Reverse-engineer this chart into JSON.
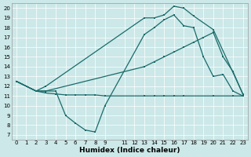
{
  "xlabel": "Humidex (Indice chaleur)",
  "xlim": [
    -0.5,
    23.5
  ],
  "ylim": [
    6.5,
    20.5
  ],
  "yticks": [
    7,
    8,
    9,
    10,
    11,
    12,
    13,
    14,
    15,
    16,
    17,
    18,
    19,
    20
  ],
  "bg_color": "#cce8e8",
  "line_color": "#1a6b6b",
  "line1_x": [
    0,
    2,
    3,
    4,
    5,
    6,
    7,
    8,
    9,
    13,
    14,
    15,
    16,
    17,
    20,
    22,
    23
  ],
  "line1_y": [
    12.5,
    11.5,
    11.3,
    11.2,
    11.1,
    11.1,
    11.1,
    11.1,
    11.0,
    11.0,
    11.0,
    11.0,
    11.0,
    11.0,
    11.0,
    11.0,
    11.0
  ],
  "line2_x": [
    0,
    2,
    3,
    4,
    5,
    6,
    7,
    8,
    9,
    13,
    14,
    15,
    16,
    17,
    18,
    19,
    20,
    21,
    22,
    23
  ],
  "line2_y": [
    12.5,
    11.5,
    11.5,
    11.5,
    9.0,
    8.2,
    7.5,
    7.3,
    10.0,
    17.3,
    18.0,
    18.8,
    19.3,
    18.2,
    18.0,
    15.0,
    13.0,
    13.2,
    11.5,
    11.0
  ],
  "line3_x": [
    0,
    2,
    3,
    13,
    14,
    15,
    16,
    17,
    18,
    19,
    20,
    21,
    22,
    23
  ],
  "line3_y": [
    12.5,
    11.5,
    11.5,
    14.0,
    14.5,
    15.0,
    15.5,
    16.0,
    16.5,
    17.0,
    17.5,
    15.0,
    13.5,
    11.2
  ],
  "line4_x": [
    0,
    2,
    3,
    13,
    14,
    15,
    16,
    17,
    18,
    20,
    23
  ],
  "line4_y": [
    12.5,
    11.5,
    12.0,
    19.0,
    19.0,
    19.3,
    20.2,
    20.0,
    19.2,
    17.8,
    11.2
  ]
}
